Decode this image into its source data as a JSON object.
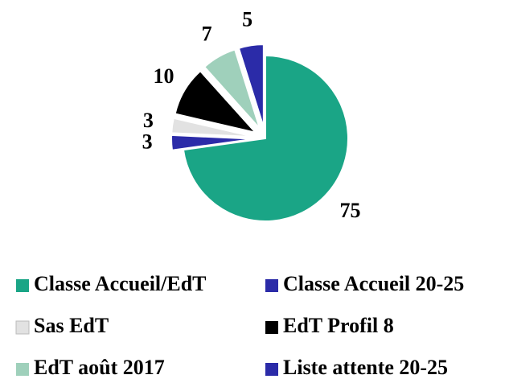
{
  "chart_data": {
    "type": "pie",
    "categories": [
      "Classe Accueil/EdT",
      "Classe Accueil 20-25",
      "Sas EdT",
      "EdT Profil 8",
      "EdT août 2017",
      "Liste attente 20-25"
    ],
    "values": [
      75,
      3,
      3,
      10,
      7,
      5
    ],
    "colors": [
      "#1aa586",
      "#2b2ba8",
      "#e2e2e2",
      "#000000",
      "#9fd0bb",
      "#2b2ba8"
    ],
    "legend": "bottom"
  }
}
